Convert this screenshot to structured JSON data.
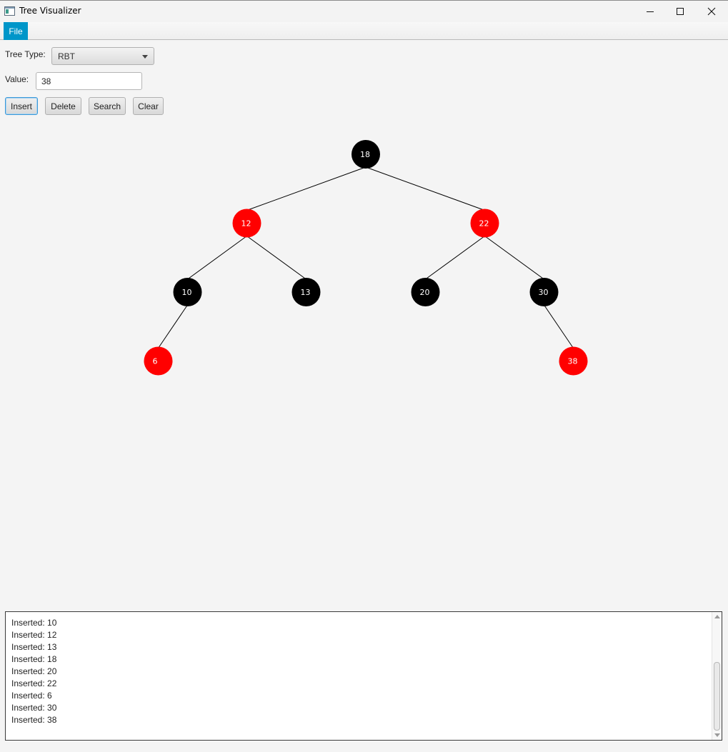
{
  "window": {
    "title": "Tree Visualizer"
  },
  "menu": {
    "file_label": "File"
  },
  "controls": {
    "tree_type_label": "Tree Type:",
    "tree_type_value": "RBT",
    "value_label": "Value:",
    "value_input": "38",
    "buttons": {
      "insert": "Insert",
      "delete": "Delete",
      "search": "Search",
      "clear": "Clear"
    }
  },
  "tree": {
    "colors": {
      "red": "#ff0000",
      "black": "#000000",
      "label": "#ffffff"
    },
    "nodes": [
      {
        "id": "18",
        "label": "18",
        "color": "black",
        "parent": null
      },
      {
        "id": "12",
        "label": "12",
        "color": "red",
        "parent": "18"
      },
      {
        "id": "22",
        "label": "22",
        "color": "red",
        "parent": "18"
      },
      {
        "id": "10",
        "label": "10",
        "color": "black",
        "parent": "12"
      },
      {
        "id": "13",
        "label": "13",
        "color": "black",
        "parent": "12"
      },
      {
        "id": "20",
        "label": "20",
        "color": "black",
        "parent": "22"
      },
      {
        "id": "30",
        "label": "30",
        "color": "black",
        "parent": "22"
      },
      {
        "id": "6",
        "label": "6",
        "color": "red",
        "parent": "10"
      },
      {
        "id": "38",
        "label": "38",
        "color": "red",
        "parent": "30"
      }
    ]
  },
  "log": {
    "lines": [
      "Inserted: 10",
      "Inserted: 12",
      "Inserted: 13",
      "Inserted: 18",
      "Inserted: 20",
      "Inserted: 22",
      "Inserted: 6",
      "Inserted: 30",
      "Inserted: 38"
    ]
  }
}
